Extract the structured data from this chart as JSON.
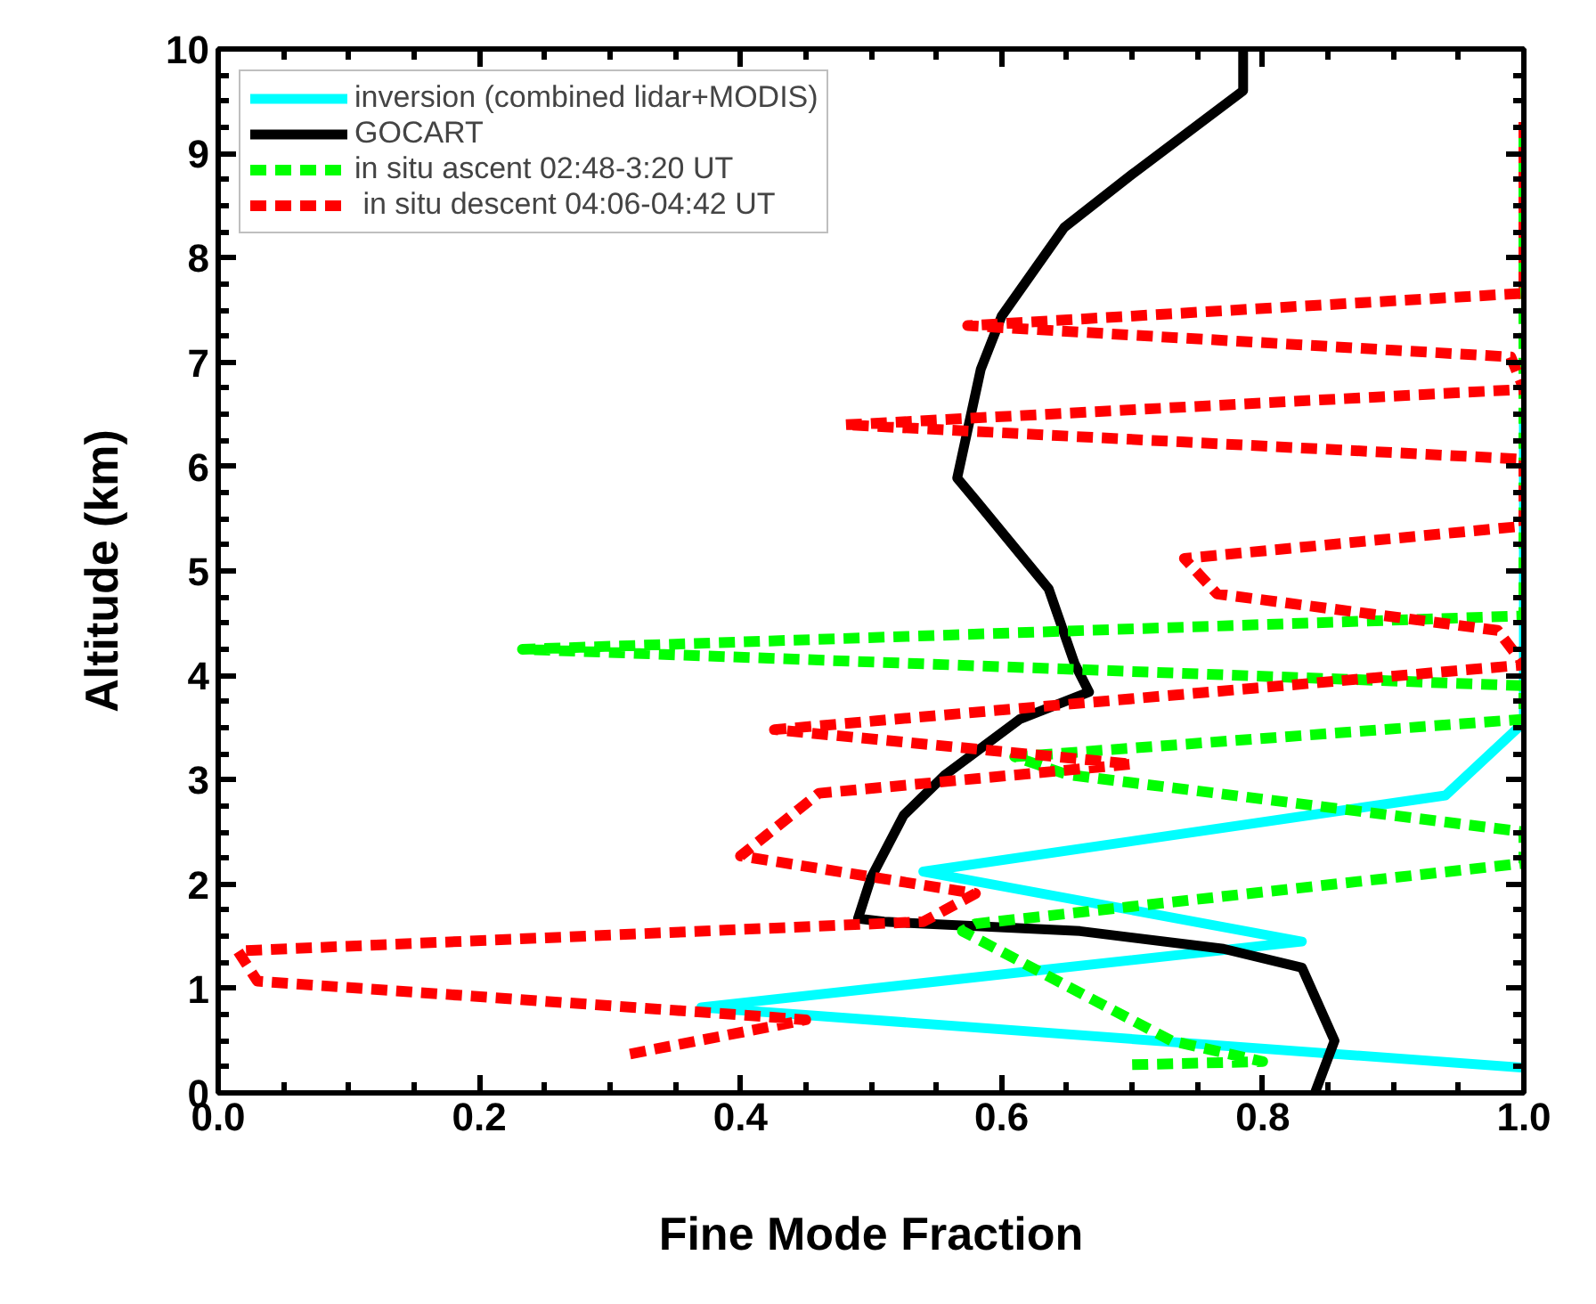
{
  "chart_data": {
    "type": "line",
    "xlabel": "Fine Mode Fraction",
    "ylabel": "Altitude (km)",
    "xlim": [
      0,
      1
    ],
    "ylim": [
      0,
      10
    ],
    "xticks": [
      {
        "value": 0,
        "label": "0.0"
      },
      {
        "value": 0.2,
        "label": "0.2"
      },
      {
        "value": 0.4,
        "label": "0.4"
      },
      {
        "value": 0.6,
        "label": "0.6"
      },
      {
        "value": 0.8,
        "label": "0.8"
      },
      {
        "value": 1,
        "label": "1.0"
      }
    ],
    "yticks": [
      0,
      1,
      2,
      3,
      4,
      5,
      6,
      7,
      8,
      9,
      10
    ],
    "grid": false,
    "legend": "top left",
    "series": [
      {
        "name": "inversion (combined lidar+MODIS)",
        "color": "#00ffff",
        "line_style": "solid",
        "x": [
          1.0,
          0.37,
          0.83,
          0.54,
          0.94,
          1.0,
          1.0
        ],
        "values": [
          0.24,
          0.82,
          1.45,
          2.12,
          2.85,
          3.55,
          6.5
        ]
      },
      {
        "name": "GOCART",
        "color": "#000000",
        "line_style": "solid",
        "x": [
          0.84,
          0.855,
          0.83,
          0.77,
          0.66,
          0.51,
          0.49,
          0.5,
          0.525,
          0.557,
          0.614,
          0.667,
          0.656,
          0.636,
          0.58,
          0.566,
          0.584,
          0.6,
          0.648,
          0.7,
          0.785,
          0.785
        ],
        "values": [
          0,
          0.5,
          1.2,
          1.38,
          1.55,
          1.64,
          1.67,
          2.06,
          2.66,
          3.05,
          3.58,
          3.84,
          4.11,
          4.83,
          5.68,
          5.89,
          6.93,
          7.44,
          8.29,
          8.8,
          9.6,
          10
        ]
      },
      {
        "name": "in situ ascent 02:48-3:20 UT",
        "color": "#00ff00",
        "line_style": "dashed",
        "x": [
          0.7,
          0.8,
          0.73,
          0.57,
          0.58,
          1.0,
          1.0,
          0.65,
          0.61,
          1.0,
          1.0,
          0.233,
          1.0,
          1.0
        ],
        "values": [
          0.27,
          0.3,
          0.5,
          1.55,
          1.62,
          2.2,
          2.5,
          3.05,
          3.22,
          3.58,
          3.9,
          4.25,
          4.57,
          9.27
        ]
      },
      {
        "name": " in situ descent 04:06-04:42 UT",
        "color": "#ff0000",
        "line_style": "dashed",
        "x": [
          1.0,
          1.0,
          0.574,
          0.99,
          1.0,
          0.48,
          1.0,
          1.0,
          0.74,
          0.765,
          0.98,
          1.0,
          0.426,
          0.7,
          0.46,
          0.42,
          0.4,
          0.58,
          0.54,
          0.015,
          0.03,
          0.42,
          0.45,
          0.31
        ],
        "values": [
          9.3,
          7.66,
          7.35,
          7.05,
          6.74,
          6.4,
          6.07,
          5.43,
          5.12,
          4.78,
          4.43,
          4.1,
          3.48,
          3.15,
          2.87,
          2.47,
          2.27,
          1.91,
          1.64,
          1.36,
          1.07,
          0.73,
          0.7,
          0.36
        ]
      }
    ]
  }
}
